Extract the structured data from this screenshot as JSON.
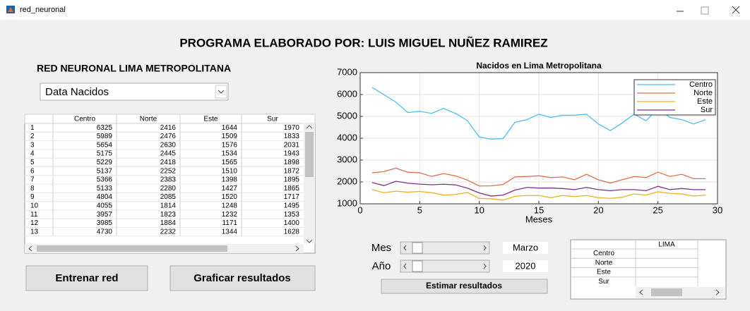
{
  "window": {
    "title": "red_neuronal"
  },
  "heading": "PROGRAMA ELABORADO POR: LUIS MIGUEL NUÑEZ RAMIREZ",
  "subtitle": "RED NEURONAL LIMA METROPOLITANA",
  "dropdown": "Data Nacidos",
  "buttons": [
    "Entrenar red",
    "Graficar resultados"
  ],
  "estimator": {
    "month_label": "Mes",
    "month": "Marzo",
    "year_label": "Año",
    "year": "2020",
    "button": "Estimar resultados",
    "table_header": "LIMA"
  },
  "chart_data": {
    "type": "line",
    "title": "Nacidos en Lima Metropolitana",
    "x_label": "Meses",
    "x": [
      1,
      2,
      3,
      4,
      5,
      6,
      7,
      8,
      9,
      10,
      11,
      12,
      13,
      14,
      15,
      16,
      17,
      18,
      19,
      20,
      21,
      22,
      23,
      24,
      25,
      26,
      27,
      28,
      29
    ],
    "xlim": [
      0,
      30
    ],
    "xticks": [
      0,
      5,
      10,
      15,
      20,
      25,
      30
    ],
    "ylim": [
      1000,
      7000
    ],
    "yticks": [
      1000,
      2000,
      3000,
      4000,
      5000,
      6000,
      7000
    ],
    "grid": true,
    "legend": "northeast",
    "series": [
      {
        "name": "Centro",
        "color": "#4dbeee",
        "values": [
          6325,
          5989,
          5654,
          5175,
          5229,
          5137,
          5366,
          5133,
          4804,
          4055,
          3957,
          3985,
          4730,
          4850,
          5100,
          4950,
          5050,
          5050,
          5100,
          4650,
          4350,
          4700,
          5100,
          4800,
          5350,
          4950,
          4850,
          4650,
          4850
        ]
      },
      {
        "name": "Norte",
        "color": "#e07050",
        "values": [
          2416,
          2476,
          2630,
          2445,
          2418,
          2252,
          2383,
          2280,
          2085,
          1814,
          1823,
          1884,
          2232,
          2250,
          2280,
          2200,
          2230,
          2100,
          2350,
          2100,
          1950,
          2100,
          2250,
          2200,
          2450,
          2250,
          2350,
          2150,
          2150
        ]
      },
      {
        "name": "Este",
        "color": "#edb120",
        "values": [
          1644,
          1509,
          1576,
          1534,
          1565,
          1510,
          1398,
          1427,
          1520,
          1248,
          1232,
          1171,
          1344,
          1380,
          1380,
          1280,
          1380,
          1330,
          1380,
          1280,
          1250,
          1300,
          1450,
          1400,
          1550,
          1480,
          1450,
          1350,
          1400
        ]
      },
      {
        "name": "Sur",
        "color": "#7e2f8e",
        "values": [
          1970,
          1833,
          2031,
          1943,
          1898,
          1872,
          1895,
          1865,
          1717,
          1495,
          1353,
          1400,
          1628,
          1750,
          1720,
          1720,
          1700,
          1650,
          1750,
          1650,
          1600,
          1650,
          1650,
          1600,
          1800,
          1650,
          1700,
          1650,
          1650
        ]
      }
    ]
  }
}
